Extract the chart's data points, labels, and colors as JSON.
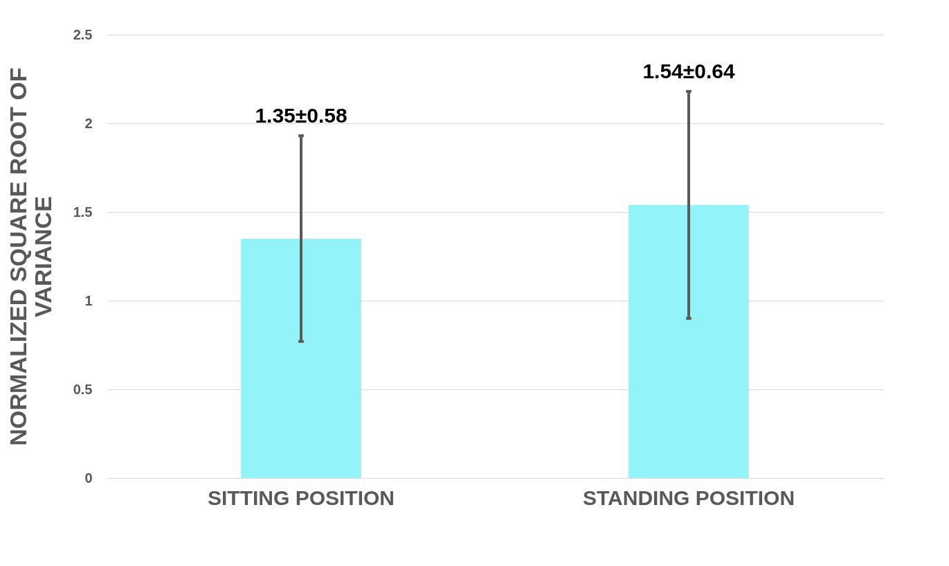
{
  "chart_data": {
    "type": "bar",
    "ylabel": "NORMALIZED SQUARE ROOT OF VARIANCE",
    "categories": [
      "SITTING POSITION",
      "STANDING POSITION"
    ],
    "values": [
      1.35,
      1.54
    ],
    "errors": [
      0.58,
      0.64
    ],
    "annotations": [
      {
        "text": "1.35±0.58",
        "x": "SITTING POSITION",
        "y": 1.93
      },
      {
        "text": "1.54±0.64",
        "x": "STANDING POSITION",
        "y": 2.18
      }
    ],
    "color": "#92f4f8",
    "ylim": [
      0,
      2.5
    ],
    "yticks": [
      0,
      0.5,
      1,
      1.5,
      2,
      2.5
    ],
    "grid": "y"
  }
}
